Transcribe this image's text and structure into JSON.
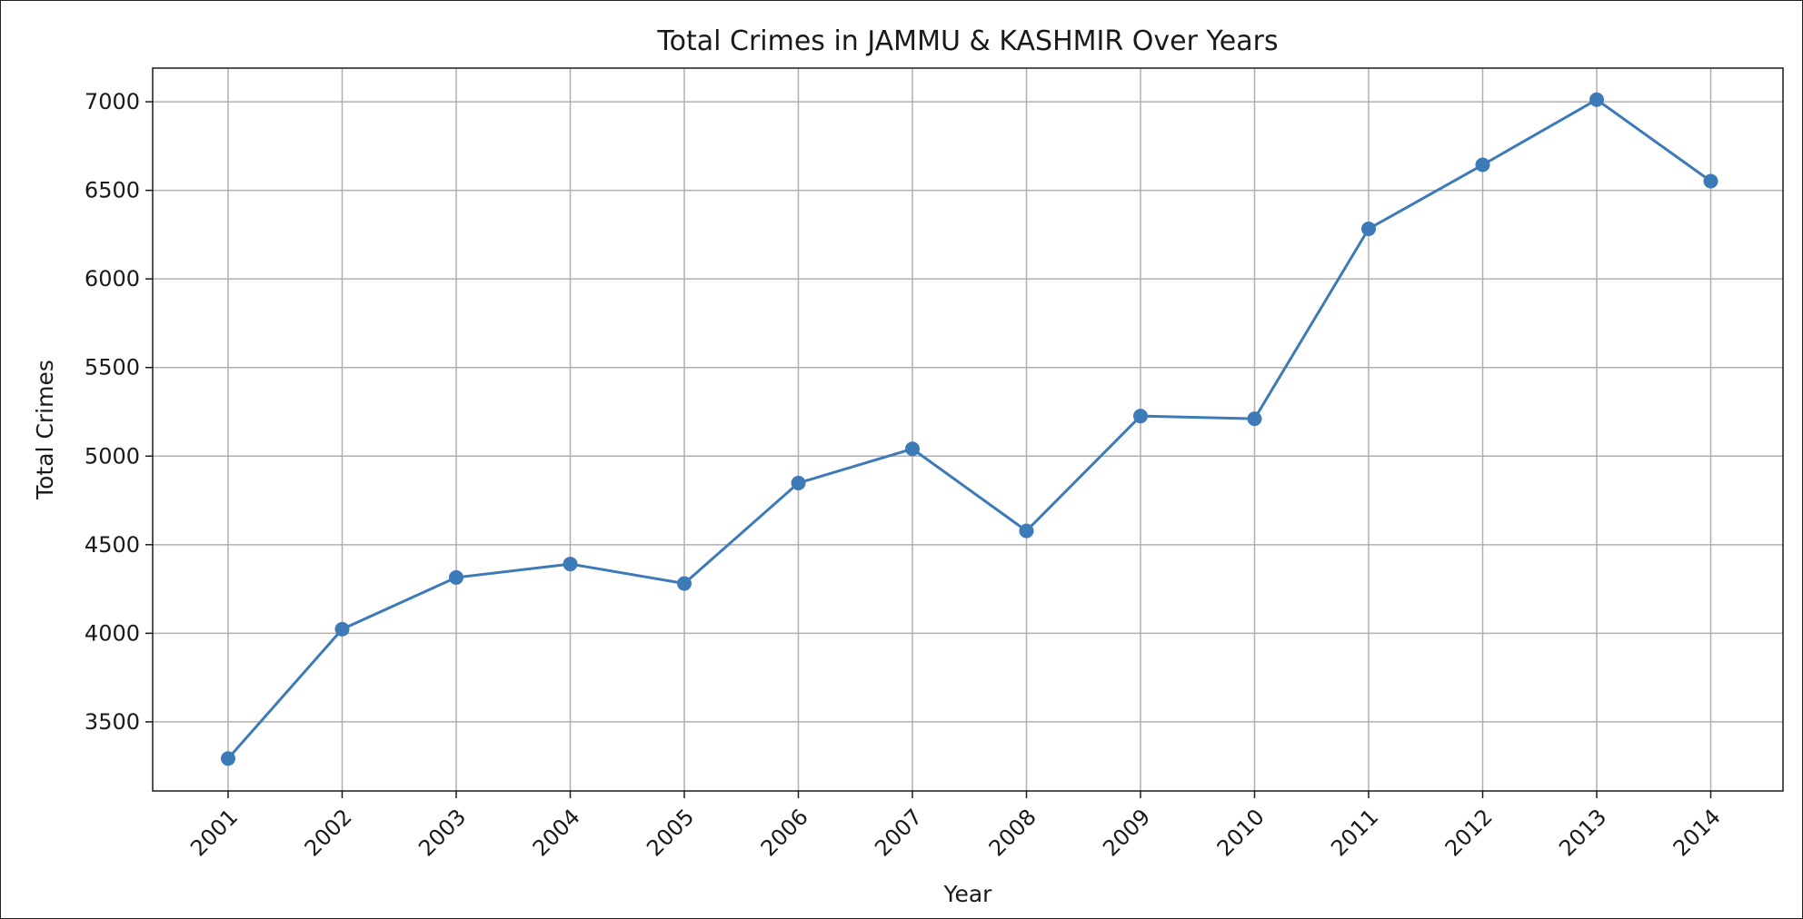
{
  "chart_data": {
    "type": "line",
    "title": "Total Crimes in JAMMU & KASHMIR Over Years",
    "xlabel": "Year",
    "ylabel": "Total Crimes",
    "x": [
      "2001",
      "2002",
      "2003",
      "2004",
      "2005",
      "2006",
      "2007",
      "2008",
      "2009",
      "2010",
      "2011",
      "2012",
      "2013",
      "2014"
    ],
    "series": [
      {
        "values": [
          3293,
          4023,
          4315,
          4391,
          4281,
          4848,
          5041,
          4578,
          5226,
          5211,
          6283,
          6644,
          7012,
          6552
        ],
        "color": "#3d7ab8"
      }
    ],
    "ylim": [
      3110,
      7190
    ],
    "yticks": [
      3500,
      4000,
      4500,
      5000,
      5500,
      6000,
      6500,
      7000
    ],
    "grid": true,
    "marker": "circle",
    "x_tick_rotation": "45 degrees"
  },
  "colors": {
    "line": "#3d7ab8",
    "grid": "#b0b0b0",
    "axes": "#1a1a1a"
  }
}
